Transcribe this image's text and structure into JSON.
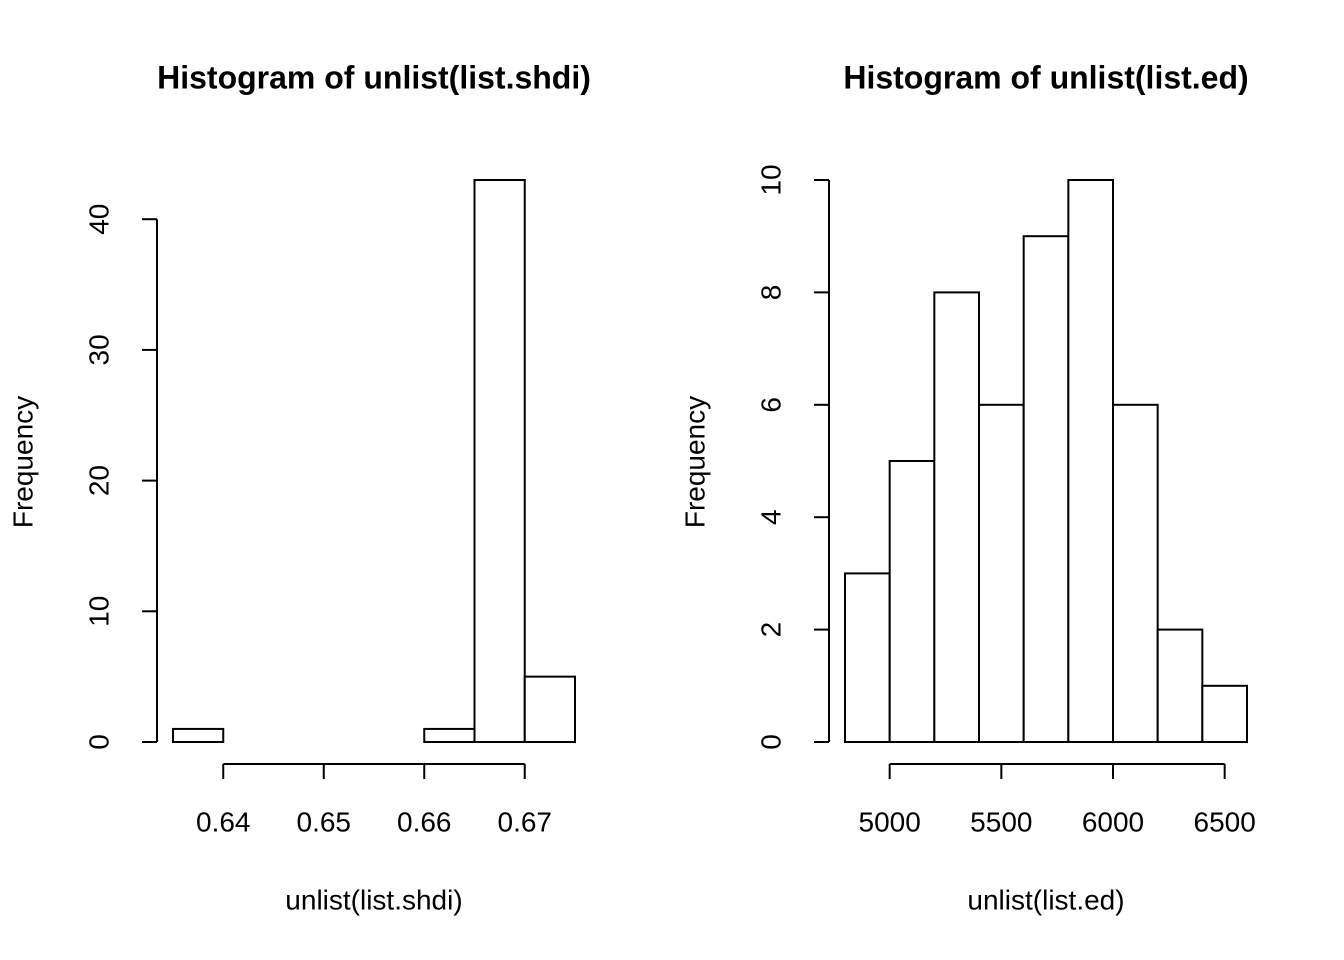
{
  "chart_data": [
    {
      "type": "histogram",
      "title": "Histogram of unlist(list.shdi)",
      "xlabel": "unlist(list.shdi)",
      "ylabel": "Frequency",
      "bins": [
        0.635,
        0.64,
        0.645,
        0.65,
        0.655,
        0.66,
        0.665,
        0.67,
        0.675
      ],
      "counts": [
        1,
        0,
        0,
        0,
        0,
        1,
        43,
        5
      ],
      "xlim": [
        0.635,
        0.675
      ],
      "ylim": [
        0,
        43
      ],
      "xticks": [
        0.64,
        0.65,
        0.66,
        0.67
      ],
      "yticks": [
        0,
        10,
        20,
        30,
        40
      ]
    },
    {
      "type": "histogram",
      "title": "Histogram of unlist(list.ed)",
      "xlabel": "unlist(list.ed)",
      "ylabel": "Frequency",
      "bins": [
        4800,
        5000,
        5200,
        5400,
        5600,
        5800,
        6000,
        6200,
        6400,
        6600
      ],
      "counts": [
        3,
        5,
        8,
        6,
        9,
        10,
        6,
        2,
        1
      ],
      "xlim": [
        4800,
        6600
      ],
      "ylim": [
        0,
        10
      ],
      "xticks": [
        5000,
        5500,
        6000,
        6500
      ],
      "yticks": [
        0,
        2,
        4,
        6,
        8,
        10
      ]
    }
  ]
}
